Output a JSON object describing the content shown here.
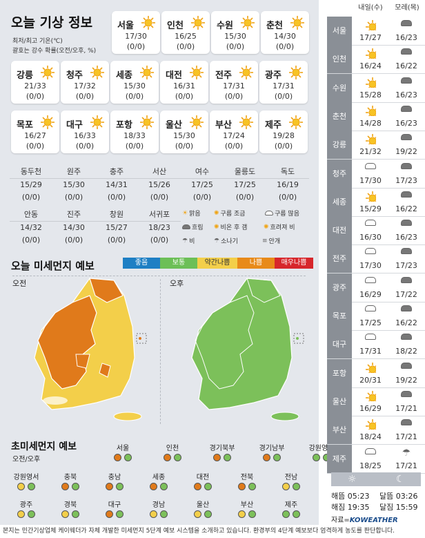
{
  "title": "오늘 기상 정보",
  "notes": [
    "최저/최고 기온(℃)",
    "괄호는 강수 확률(오전/오후, %)"
  ],
  "cards": [
    {
      "name": "서울",
      "temp": "17/30",
      "prob": "(0/0)"
    },
    {
      "name": "인천",
      "temp": "16/25",
      "prob": "(0/0)"
    },
    {
      "name": "수원",
      "temp": "15/30",
      "prob": "(0/0)"
    },
    {
      "name": "춘천",
      "temp": "14/30",
      "prob": "(0/0)"
    },
    {
      "name": "강릉",
      "temp": "21/33",
      "prob": "(0/0)"
    },
    {
      "name": "청주",
      "temp": "17/32",
      "prob": "(0/0)"
    },
    {
      "name": "세종",
      "temp": "15/30",
      "prob": "(0/0)"
    },
    {
      "name": "대전",
      "temp": "16/31",
      "prob": "(0/0)"
    },
    {
      "name": "전주",
      "temp": "17/31",
      "prob": "(0/0)"
    },
    {
      "name": "광주",
      "temp": "17/31",
      "prob": "(0/0)"
    },
    {
      "name": "목포",
      "temp": "16/27",
      "prob": "(0/0)"
    },
    {
      "name": "대구",
      "temp": "16/33",
      "prob": "(0/0)"
    },
    {
      "name": "포항",
      "temp": "18/33",
      "prob": "(0/0)"
    },
    {
      "name": "울산",
      "temp": "15/30",
      "prob": "(0/0)"
    },
    {
      "name": "부산",
      "temp": "17/24",
      "prob": "(0/0)"
    },
    {
      "name": "제주",
      "temp": "19/28",
      "prob": "(0/0)"
    }
  ],
  "cities": [
    {
      "name": "동두천",
      "temp": "15/29",
      "prob": "(0/0)"
    },
    {
      "name": "원주",
      "temp": "15/30",
      "prob": "(0/0)"
    },
    {
      "name": "충주",
      "temp": "14/31",
      "prob": "(0/0)"
    },
    {
      "name": "서산",
      "temp": "15/26",
      "prob": "(0/0)"
    },
    {
      "name": "여수",
      "temp": "17/25",
      "prob": "(0/0)"
    },
    {
      "name": "울릉도",
      "temp": "17/25",
      "prob": "(0/0)"
    },
    {
      "name": "독도",
      "temp": "16/19",
      "prob": "(0/0)"
    },
    {
      "name": "안동",
      "temp": "14/32",
      "prob": "(0/0)"
    },
    {
      "name": "진주",
      "temp": "14/30",
      "prob": "(0/0)"
    },
    {
      "name": "창원",
      "temp": "15/27",
      "prob": "(0/0)"
    },
    {
      "name": "서귀포",
      "temp": "18/23",
      "prob": "(0/0)"
    }
  ],
  "weather_legend": [
    "맑음",
    "구름 조금",
    "구름 많음",
    "흐림",
    "비온 후 갬",
    "흐려져 비",
    "비",
    "소나기",
    "안개"
  ],
  "dust": {
    "title": "오늘 미세먼지 예보",
    "levels": [
      {
        "label": "좋음",
        "color": "#1e7fc4"
      },
      {
        "label": "보통",
        "color": "#6cbf57"
      },
      {
        "label": "약간나쁨",
        "color": "#f3cf4a"
      },
      {
        "label": "나쁨",
        "color": "#e88a1a"
      },
      {
        "label": "매우나쁨",
        "color": "#d7262b"
      }
    ],
    "am": "오전",
    "pm": "오후"
  },
  "fine": {
    "title": "초미세먼지 예보",
    "sub": "오전/오후",
    "regions": [
      {
        "name": "서울",
        "am": "o",
        "pm": "g"
      },
      {
        "name": "인천",
        "am": "o",
        "pm": "g"
      },
      {
        "name": "경기북부",
        "am": "o",
        "pm": "g"
      },
      {
        "name": "경기남부",
        "am": "o",
        "pm": "g"
      },
      {
        "name": "강원영동",
        "am": "g",
        "pm": "g"
      },
      {
        "name": "강원영서",
        "am": "y",
        "pm": "g"
      },
      {
        "name": "충북",
        "am": "o",
        "pm": "g"
      },
      {
        "name": "충남",
        "am": "o",
        "pm": "g"
      },
      {
        "name": "세종",
        "am": "o",
        "pm": "g"
      },
      {
        "name": "대전",
        "am": "o",
        "pm": "g"
      },
      {
        "name": "전북",
        "am": "o",
        "pm": "g"
      },
      {
        "name": "전남",
        "am": "y",
        "pm": "g"
      },
      {
        "name": "광주",
        "am": "y",
        "pm": "g"
      },
      {
        "name": "경북",
        "am": "y",
        "pm": "g"
      },
      {
        "name": "대구",
        "am": "o",
        "pm": "g"
      },
      {
        "name": "경남",
        "am": "y",
        "pm": "g"
      },
      {
        "name": "울산",
        "am": "y",
        "pm": "g"
      },
      {
        "name": "부산",
        "am": "y",
        "pm": "g"
      },
      {
        "name": "제주",
        "am": "g",
        "pm": "g"
      }
    ]
  },
  "forecast": {
    "day1": "내일(수)",
    "day2": "모레(목)",
    "rows": [
      {
        "name": "서울",
        "d1": "17/27",
        "d2": "16/23",
        "i1": "sun",
        "i2": "cloudf"
      },
      {
        "name": "인천",
        "d1": "16/24",
        "d2": "16/22",
        "i1": "sun",
        "i2": "cloudf"
      },
      {
        "name": "수원",
        "d1": "15/28",
        "d2": "16/23",
        "i1": "sun",
        "i2": "cloudf"
      },
      {
        "name": "춘천",
        "d1": "14/28",
        "d2": "16/23",
        "i1": "sun",
        "i2": "cloudf"
      },
      {
        "name": "강릉",
        "d1": "21/32",
        "d2": "19/22",
        "i1": "sun",
        "i2": "cloudf"
      },
      {
        "name": "청주",
        "d1": "17/30",
        "d2": "17/23",
        "i1": "cloud",
        "i2": "cloudf"
      },
      {
        "name": "세종",
        "d1": "15/29",
        "d2": "16/22",
        "i1": "sun",
        "i2": "cloudf"
      },
      {
        "name": "대전",
        "d1": "16/30",
        "d2": "16/23",
        "i1": "cloud",
        "i2": "cloudf"
      },
      {
        "name": "전주",
        "d1": "17/30",
        "d2": "17/23",
        "i1": "cloud",
        "i2": "cloudf"
      },
      {
        "name": "광주",
        "d1": "16/29",
        "d2": "17/22",
        "i1": "cloud",
        "i2": "cloudf"
      },
      {
        "name": "목포",
        "d1": "17/25",
        "d2": "16/22",
        "i1": "cloud",
        "i2": "cloudf"
      },
      {
        "name": "대구",
        "d1": "17/31",
        "d2": "18/22",
        "i1": "cloud",
        "i2": "cloudf"
      },
      {
        "name": "포항",
        "d1": "20/31",
        "d2": "19/22",
        "i1": "sun",
        "i2": "cloudf"
      },
      {
        "name": "울산",
        "d1": "16/29",
        "d2": "17/21",
        "i1": "sun",
        "i2": "cloudf"
      },
      {
        "name": "부산",
        "d1": "18/24",
        "d2": "17/21",
        "i1": "sun",
        "i2": "cloudf"
      },
      {
        "name": "제주",
        "d1": "18/25",
        "d2": "17/21",
        "i1": "cloud",
        "i2": "rain"
      }
    ]
  },
  "sun": {
    "rise": "해뜸 05:23",
    "set": "해짐 19:35",
    "moonrise": "달뜸 03:26",
    "moonset": "달짐 15:59"
  },
  "source_label": "자료=",
  "brand": "KOWEATHER",
  "footer": "본지는 민간기상업체 케이웨더가 자체 개발한 미세먼지 5단계 예보 시스템을 소개하고 있습니다. 환경부의 4단계 예보보다 엄격하게 농도를 판단합니다."
}
